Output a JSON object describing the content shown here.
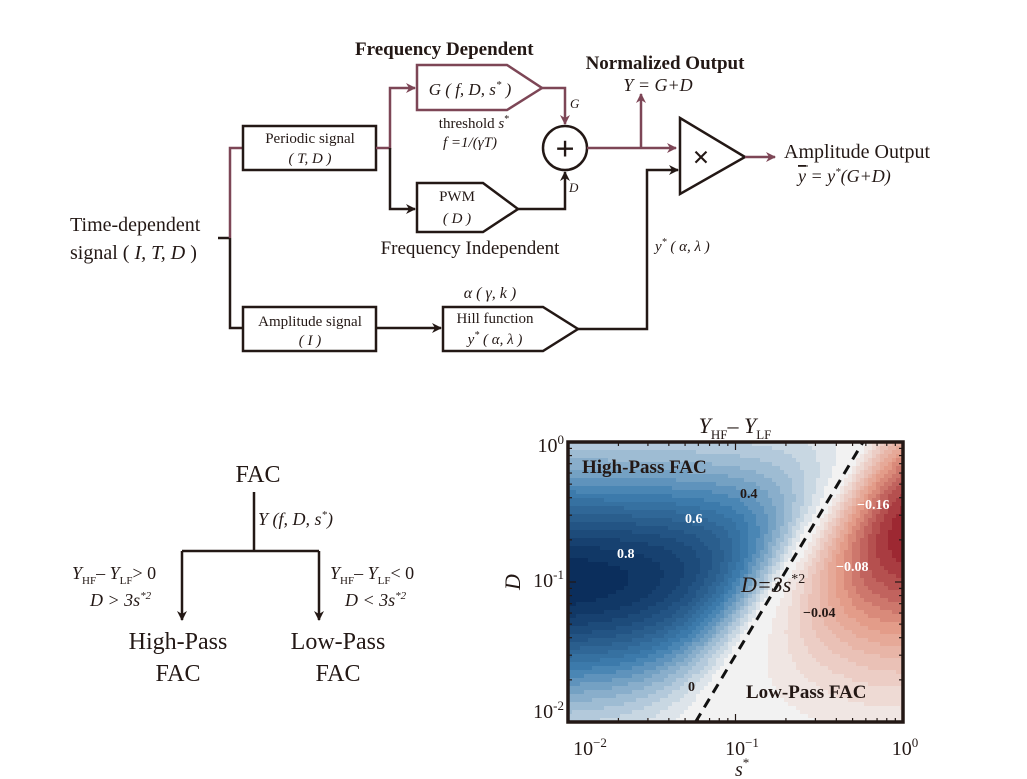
{
  "colors": {
    "accent_line": "#7d4656",
    "ink": "#231815",
    "positive": "#0b2e5c",
    "negative": "#8c0d1e",
    "neutral": "#f2f2f2"
  },
  "flow": {
    "input": {
      "line1": "Time-dependent",
      "line2_pre": "signal ( ",
      "line2_vars": "I, T, D",
      "line2_post": " )"
    },
    "periodic": {
      "title": "Periodic signal",
      "params": "( T, D )"
    },
    "amplitude": {
      "title": "Amplitude signal",
      "params": "( I )"
    },
    "freq_dep_heading": "Frequency Dependent",
    "freq_indep_heading": "Frequency Independent",
    "g_block": {
      "label": "G ( f, D, s",
      "sup": "*",
      "close": " )",
      "note1_pre": "threshold ",
      "note1_var": "s",
      "note1_sup": "*",
      "note2": "f =1/(γT)"
    },
    "pwm_block": {
      "title": "PWM",
      "params": "( D )"
    },
    "hill_block": {
      "above": "α ( γ, k )",
      "title": "Hill function",
      "param_var": "y",
      "param_sup": "*",
      "param_rest": " ( α, λ )"
    },
    "sum_node": {
      "symbol": "+",
      "in_top": "G",
      "in_bottom": "D"
    },
    "mult_node": {
      "symbol": "×",
      "in_label_var": "y",
      "in_label_sup": "*",
      "in_label_rest": " ( α, λ )"
    },
    "normalized_output": {
      "title": "Normalized Output",
      "formula": "Y = G+D"
    },
    "amplitude_output": {
      "title": "Amplitude Output",
      "formula_bar": "y",
      "formula_rest": " = y",
      "formula_sup": "*",
      "formula_end": "(G+D)"
    }
  },
  "tree": {
    "root": "FAC",
    "edge_pre": "Y (f, D, s",
    "edge_sup": "*",
    "edge_post": ")",
    "left": {
      "cond_y": "Y",
      "cond_sub1": "HF",
      "cond_mid": "– Y",
      "cond_sub2": "LF",
      "cond_end": "> 0",
      "cond2": "D > 3s",
      "cond2_sup": "*2",
      "line1": "High-Pass",
      "line2": "FAC"
    },
    "right": {
      "cond_y": "Y",
      "cond_sub1": "HF",
      "cond_mid": "– Y",
      "cond_sub2": "LF",
      "cond_end": "< 0",
      "cond2": "D < 3s",
      "cond2_sup": "*2",
      "line1": "Low-Pass",
      "line2": "FAC"
    }
  },
  "chart_data": {
    "type": "heatmap",
    "title_y": "Y",
    "title_sub1": "HF",
    "title_mid": "– Y",
    "title_sub2": "LF",
    "xlabel": "s",
    "xlabel_sup": "*",
    "ylabel": "D",
    "xscale": "log",
    "yscale": "log",
    "xlim": [
      0.01,
      1
    ],
    "ylim": [
      0.01,
      1
    ],
    "xticks": [
      {
        "base": "10",
        "exp": "−2"
      },
      {
        "base": "10",
        "exp": "−1"
      },
      {
        "base": "10",
        "exp": "0"
      }
    ],
    "yticks": [
      {
        "base": "10",
        "exp": "-2"
      },
      {
        "base": "10",
        "exp": "-1"
      },
      {
        "base": "10",
        "exp": "0"
      }
    ],
    "contour_labels": [
      "0.8",
      "0.6",
      "0.4",
      "0",
      "−0.04",
      "−0.08",
      "−0.16"
    ],
    "boundary": {
      "label_pre": "D=3s",
      "label_sup": "*2",
      "coefficient": 3,
      "exponent": 2,
      "style": "dashed"
    },
    "regions": {
      "positive": "High-Pass FAC",
      "negative": "Low-Pass FAC"
    },
    "colormap": "blue (positive) – white (0) – red (negative)",
    "value_range": [
      -0.18,
      0.85
    ]
  }
}
